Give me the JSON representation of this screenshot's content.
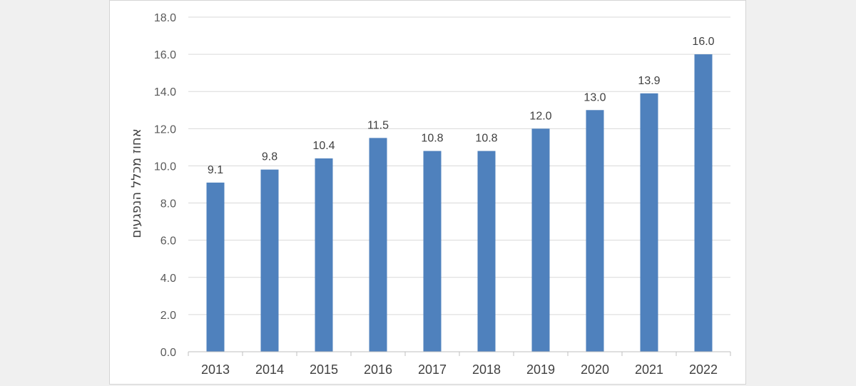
{
  "chart_data": {
    "type": "bar",
    "title": "",
    "xlabel": "",
    "ylabel": "אחוז מכלל הנפגעים",
    "categories": [
      "2013",
      "2014",
      "2015",
      "2016",
      "2017",
      "2018",
      "2019",
      "2020",
      "2021",
      "2022"
    ],
    "values": [
      9.1,
      9.8,
      10.4,
      11.5,
      10.8,
      10.8,
      12.0,
      13.0,
      13.9,
      16.0
    ],
    "data_labels": [
      "9.1",
      "9.8",
      "10.4",
      "11.5",
      "10.8",
      "10.8",
      "12.0",
      "13.0",
      "13.9",
      "16.0"
    ],
    "ylim": [
      0,
      18
    ],
    "yticks": [
      0,
      2,
      4,
      6,
      8,
      10,
      12,
      14,
      16,
      18
    ],
    "ytick_labels": [
      "0.0",
      "2.0",
      "4.0",
      "6.0",
      "8.0",
      "10.0",
      "12.0",
      "14.0",
      "16.0",
      "18.0"
    ],
    "grid": true,
    "legend": "none",
    "colors": {
      "bar": "#4f81bd",
      "grid": "#d9d9d9",
      "axis": "#bfbfbf"
    }
  }
}
